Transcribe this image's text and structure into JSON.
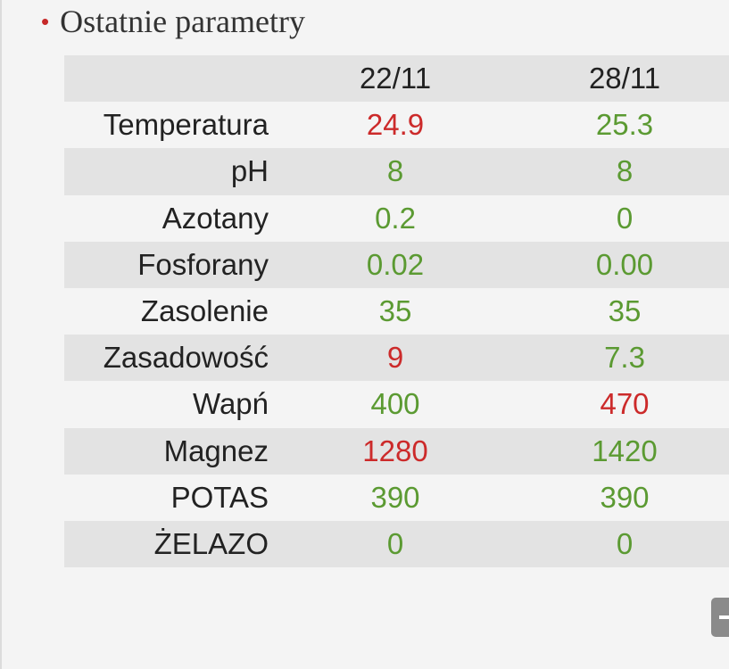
{
  "header": {
    "bullet": "•",
    "title": "Ostatnie parametry"
  },
  "table": {
    "columns": [
      "22/11",
      "28/11"
    ],
    "rows": [
      {
        "label": "Temperatura",
        "cells": [
          {
            "text": "24.9",
            "color": "#cc2a2a"
          },
          {
            "text": "25.3",
            "color": "#5b9a32"
          }
        ]
      },
      {
        "label": "pH",
        "cells": [
          {
            "text": "8",
            "color": "#5b9a32"
          },
          {
            "text": "8",
            "color": "#5b9a32"
          }
        ]
      },
      {
        "label": "Azotany",
        "cells": [
          {
            "text": "0.2",
            "color": "#5b9a32"
          },
          {
            "text": "0",
            "color": "#5b9a32"
          }
        ]
      },
      {
        "label": "Fosforany",
        "cells": [
          {
            "text": "0.02",
            "color": "#5b9a32"
          },
          {
            "text": "0.00",
            "color": "#5b9a32"
          }
        ]
      },
      {
        "label": "Zasolenie",
        "cells": [
          {
            "text": "35",
            "color": "#5b9a32"
          },
          {
            "text": "35",
            "color": "#5b9a32"
          }
        ]
      },
      {
        "label": "Zasadowość",
        "cells": [
          {
            "text": "9",
            "color": "#cc2a2a"
          },
          {
            "text": "7.3",
            "color": "#5b9a32"
          }
        ]
      },
      {
        "label": "Wapń",
        "cells": [
          {
            "text": "400",
            "color": "#5b9a32"
          },
          {
            "text": "470",
            "color": "#cc2a2a"
          }
        ]
      },
      {
        "label": "Magnez",
        "cells": [
          {
            "text": "1280",
            "color": "#cc2a2a"
          },
          {
            "text": "1420",
            "color": "#5b9a32"
          }
        ]
      },
      {
        "label": "POTAS",
        "cells": [
          {
            "text": "390",
            "color": "#5b9a32"
          },
          {
            "text": "390",
            "color": "#5b9a32"
          }
        ]
      },
      {
        "label": "ŻELAZO",
        "cells": [
          {
            "text": "0",
            "color": "#5b9a32"
          },
          {
            "text": "0",
            "color": "#5b9a32"
          }
        ]
      }
    ]
  }
}
